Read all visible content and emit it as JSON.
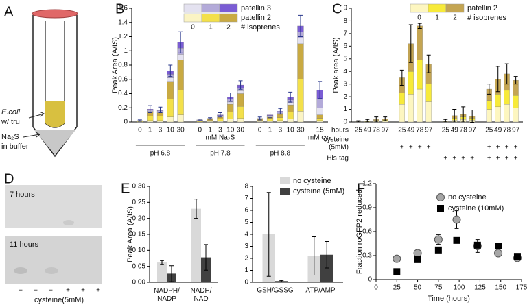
{
  "panel_labels": [
    "A",
    "B",
    "C",
    "D",
    "E",
    "F"
  ],
  "panel_a": {
    "labels": [
      "E.coli",
      "w/ tru",
      "Na₂S",
      "in buffer"
    ]
  },
  "panel_d": {
    "labels": [
      "7 hours",
      "11 hours"
    ],
    "lanes": [
      "−",
      "−",
      "−",
      "+",
      "+",
      "+"
    ],
    "caption": "cysteine(5mM)"
  },
  "chart_data": [
    {
      "type": "stacked_bar",
      "ylabel": "Peak Area (A/IS)",
      "ylim": [
        0,
        1.6
      ],
      "yticks": [
        0,
        0.2,
        0.4,
        0.6,
        0.8,
        1,
        1.2,
        1.4,
        1.6
      ],
      "categories": [
        "0",
        "1",
        "3",
        "10",
        "30",
        "0",
        "1",
        "3",
        "10",
        "30",
        "0",
        "1",
        "3",
        "10",
        "30",
        "15"
      ],
      "group_labels": [
        "pH 6.8",
        "pH 7.8",
        "pH 8.8"
      ],
      "xlabel": "mM Na₂S",
      "extra_label": "mM cys",
      "series_groups": [
        {
          "name": "patellin 2",
          "series": [
            {
              "color": "#fbf4c4",
              "values": [
                0,
                0.02,
                0.02,
                0.07,
                0.1,
                0,
                0.01,
                0.01,
                0.04,
                0.05,
                0.01,
                0.01,
                0.02,
                0.04,
                0.15,
                0.02
              ]
            },
            {
              "color": "#f3e04a",
              "values": [
                0.01,
                0.06,
                0.06,
                0.25,
                0.35,
                0.01,
                0.01,
                0.03,
                0.1,
                0.17,
                0.01,
                0.03,
                0.04,
                0.1,
                0.45,
                0.03
              ]
            },
            {
              "color": "#c9aa42",
              "values": [
                0.01,
                0.06,
                0.05,
                0.25,
                0.42,
                0.01,
                0.02,
                0.03,
                0.11,
                0.18,
                0.02,
                0.03,
                0.05,
                0.1,
                0.5,
                0.05
              ]
            }
          ]
        },
        {
          "name": "patellin 3",
          "series": [
            {
              "color": "#e4e2f0",
              "values": [
                0,
                0.01,
                0.01,
                0.05,
                0.08,
                0,
                0,
                0.01,
                0.03,
                0.04,
                0,
                0.01,
                0.01,
                0.03,
                0.08,
                0.1
              ]
            },
            {
              "color": "#b3aad9",
              "values": [
                0,
                0.02,
                0.02,
                0.05,
                0.09,
                0.01,
                0.01,
                0.01,
                0.04,
                0.04,
                0.01,
                0.01,
                0.02,
                0.04,
                0.09,
                0.12
              ]
            },
            {
              "color": "#7a5cd4",
              "values": [
                0,
                0.01,
                0.01,
                0.05,
                0.08,
                0,
                0,
                0.01,
                0.03,
                0.04,
                0,
                0.01,
                0.01,
                0.04,
                0.08,
                0.13
              ]
            }
          ]
        }
      ],
      "errors": [
        0.01,
        0.05,
        0.04,
        0.08,
        0.15,
        0.01,
        0.01,
        0.03,
        0.06,
        0.06,
        0.02,
        0.04,
        0.04,
        0.07,
        0.15,
        0.12
      ],
      "error_color": "#27368a",
      "legend_columns": [
        "0",
        "1",
        "2"
      ],
      "legend_title": "# isoprenes"
    },
    {
      "type": "stacked_bar",
      "ylabel": "Peak area (A/IS)",
      "ylim": [
        0,
        9
      ],
      "yticks": [
        0,
        1,
        2,
        3,
        4,
        5,
        6,
        7,
        8,
        9
      ],
      "categories": [
        "25",
        "49",
        "78",
        "97",
        "25",
        "49",
        "78",
        "97",
        "25",
        "49",
        "78",
        "97",
        "25",
        "49",
        "78",
        "97"
      ],
      "row_title": "hours",
      "conditions": [
        {
          "label": [
            "cysteine",
            "(5mM)"
          ],
          "marks": [
            null,
            null,
            null,
            null,
            "+",
            "+",
            "+",
            "+",
            null,
            null,
            null,
            null,
            "+",
            "+",
            "+",
            "+"
          ]
        },
        {
          "label": [
            "His-tag"
          ],
          "marks": [
            null,
            null,
            null,
            null,
            null,
            null,
            null,
            null,
            "+",
            "+",
            "+",
            "+",
            "+",
            "+",
            "+",
            "+"
          ]
        }
      ],
      "series_groups": [
        {
          "name": "patellin 2",
          "series": [
            {
              "color": "#fdf6c0",
              "values": [
                0.02,
                0.03,
                0.06,
                0.08,
                1.4,
                2.2,
                2.6,
                1.6,
                0.04,
                0.15,
                0.2,
                0.15,
                1.0,
                1.2,
                1.4,
                1.1
              ]
            },
            {
              "color": "#f7ea3a",
              "values": [
                0.01,
                0.03,
                0.07,
                0.08,
                0.9,
                1.8,
                2.3,
                1.4,
                0.03,
                0.15,
                0.2,
                0.15,
                0.7,
                1.0,
                1.1,
                1.0
              ]
            },
            {
              "color": "#c4a552",
              "values": [
                0.02,
                0.04,
                0.07,
                0.09,
                1.2,
                2.2,
                2.7,
                1.6,
                0.03,
                0.2,
                0.2,
                0.15,
                0.9,
                1.2,
                1.3,
                1.2
              ]
            }
          ]
        }
      ],
      "errors": [
        0.05,
        0.1,
        0.2,
        0.15,
        0.6,
        1.5,
        0.2,
        0.7,
        0.1,
        0.5,
        0.6,
        0.5,
        0.4,
        1.0,
        0.8,
        0.3
      ],
      "error_color": "#000000",
      "legend_columns": [
        "0",
        "1",
        "2"
      ],
      "legend_title": "# isoprenes"
    },
    {
      "type": "bar",
      "ylabel": "Peak Area (A/IS)",
      "ylim": [
        0,
        0.3
      ],
      "yticks": [
        {
          "value": 0,
          "label": "0.00"
        },
        {
          "value": 0.05,
          "label": "0.05"
        },
        {
          "value": 0.1,
          "label": "0.10"
        },
        {
          "value": 0.15,
          "label": "0.15"
        },
        {
          "value": 0.2,
          "label": "0.20"
        },
        {
          "value": 0.25,
          "label": "0.25"
        },
        {
          "value": 0.3,
          "label": "0.30"
        }
      ],
      "categories": [
        "NADPH/\nNADP",
        "NADH/\nNAD"
      ],
      "series": [
        {
          "color": "#d9d9d9",
          "values": [
            0.062,
            0.23
          ],
          "errors": [
            0.006,
            0.03
          ]
        },
        {
          "color": "#404040",
          "values": [
            0.027,
            0.078
          ],
          "errors": [
            0.025,
            0.04
          ]
        }
      ]
    },
    {
      "type": "bar",
      "ylim": [
        0,
        8
      ],
      "yticks": [
        0,
        1,
        2,
        3,
        4,
        5,
        6,
        7,
        8
      ],
      "categories": [
        "GSH/GSSG",
        "ATP/AMP"
      ],
      "series": [
        {
          "name": "no cysteine",
          "color": "#d9d9d9",
          "values": [
            4.0,
            2.2
          ],
          "errors": [
            3.5,
            1.6
          ]
        },
        {
          "name": "cysteine (5mM)",
          "color": "#404040",
          "values": [
            0.1,
            2.3
          ],
          "errors": [
            0.05,
            1.1
          ]
        }
      ]
    },
    {
      "type": "scatter",
      "xlabel": "Time (hours)",
      "ylabel": "Fraction roGFP2 reduced",
      "x": [
        25,
        50,
        75,
        97,
        122,
        147,
        170
      ],
      "xlim": [
        0,
        175
      ],
      "xticks": [
        0,
        25,
        50,
        75,
        100,
        125,
        150,
        175
      ],
      "ylim": [
        0,
        1.2
      ],
      "yticks": [
        0,
        0.3,
        0.6,
        0.9,
        1.2
      ],
      "series": [
        {
          "name": "no cysteine",
          "color": "#a6a6a6",
          "marker": "circle",
          "values": [
            0.26,
            0.33,
            0.5,
            0.75,
            0.42,
            0.33,
            0.27
          ],
          "errors": [
            0.03,
            0.05,
            0.06,
            0.11,
            0.08,
            0.04,
            0.03
          ]
        },
        {
          "name": "cysteine (10mM)",
          "color": "#000000",
          "marker": "square",
          "values": [
            0.1,
            0.25,
            0.37,
            0.49,
            0.43,
            0.42,
            0.29
          ],
          "errors": [
            0,
            0,
            0.03,
            0,
            0,
            0,
            0
          ]
        }
      ]
    }
  ]
}
